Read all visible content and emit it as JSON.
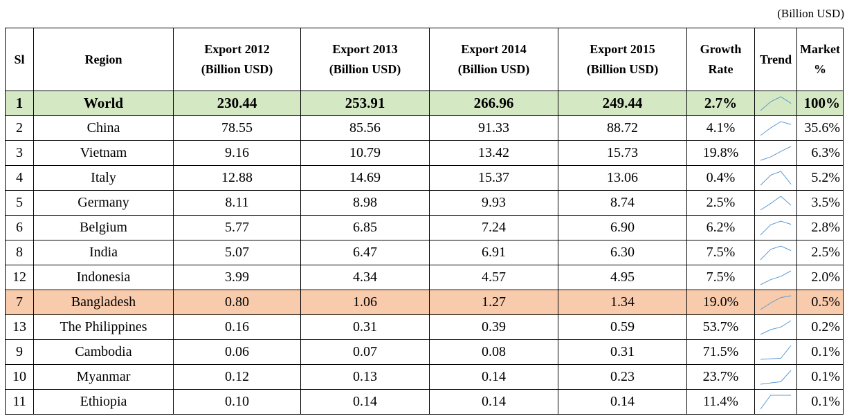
{
  "note": "(Billion USD)",
  "table": {
    "header": [
      [
        "Sl"
      ],
      [
        "Region"
      ],
      [
        "Export 2012",
        "(Billion USD)"
      ],
      [
        "Export 2013",
        "(Billion USD)"
      ],
      [
        "Export 2014",
        "(Billion USD)"
      ],
      [
        "Export 2015",
        "(Billion USD)"
      ],
      [
        "Growth",
        "Rate"
      ],
      [
        "Trend"
      ],
      [
        "Market",
        "%"
      ]
    ],
    "rows": [
      [
        "1",
        "World",
        "230.44",
        "253.91",
        "266.96",
        "249.44",
        "2.7%",
        "100%"
      ],
      [
        "2",
        "China",
        "78.55",
        "85.56",
        "91.33",
        "88.72",
        "4.1%",
        "35.6%"
      ],
      [
        "3",
        "Vietnam",
        "9.16",
        "10.79",
        "13.42",
        "15.73",
        "19.8%",
        "6.3%"
      ],
      [
        "4",
        "Italy",
        "12.88",
        "14.69",
        "15.37",
        "13.06",
        "0.4%",
        "5.2%"
      ],
      [
        "5",
        "Germany",
        "8.11",
        "8.98",
        "9.93",
        "8.74",
        "2.5%",
        "3.5%"
      ],
      [
        "6",
        "Belgium",
        "5.77",
        "6.85",
        "7.24",
        "6.90",
        "6.2%",
        "2.8%"
      ],
      [
        "8",
        "India",
        "5.07",
        "6.47",
        "6.91",
        "6.30",
        "7.5%",
        "2.5%"
      ],
      [
        "12",
        "Indonesia",
        "3.99",
        "4.34",
        "4.57",
        "4.95",
        "7.5%",
        "2.0%"
      ],
      [
        "7",
        "Bangladesh",
        "0.80",
        "1.06",
        "1.27",
        "1.34",
        "19.0%",
        "0.5%"
      ],
      [
        "13",
        "The Philippines",
        "0.16",
        "0.31",
        "0.39",
        "0.59",
        "53.7%",
        "0.2%"
      ],
      [
        "9",
        "Cambodia",
        "0.06",
        "0.07",
        "0.08",
        "0.31",
        "71.5%",
        "0.1%"
      ],
      [
        "10",
        "Myanmar",
        "0.12",
        "0.13",
        "0.14",
        "0.23",
        "23.7%",
        "0.1%"
      ],
      [
        "11",
        "Ethiopia",
        "0.10",
        "0.14",
        "0.14",
        "0.14",
        "11.4%",
        "0.1%"
      ]
    ]
  }
}
